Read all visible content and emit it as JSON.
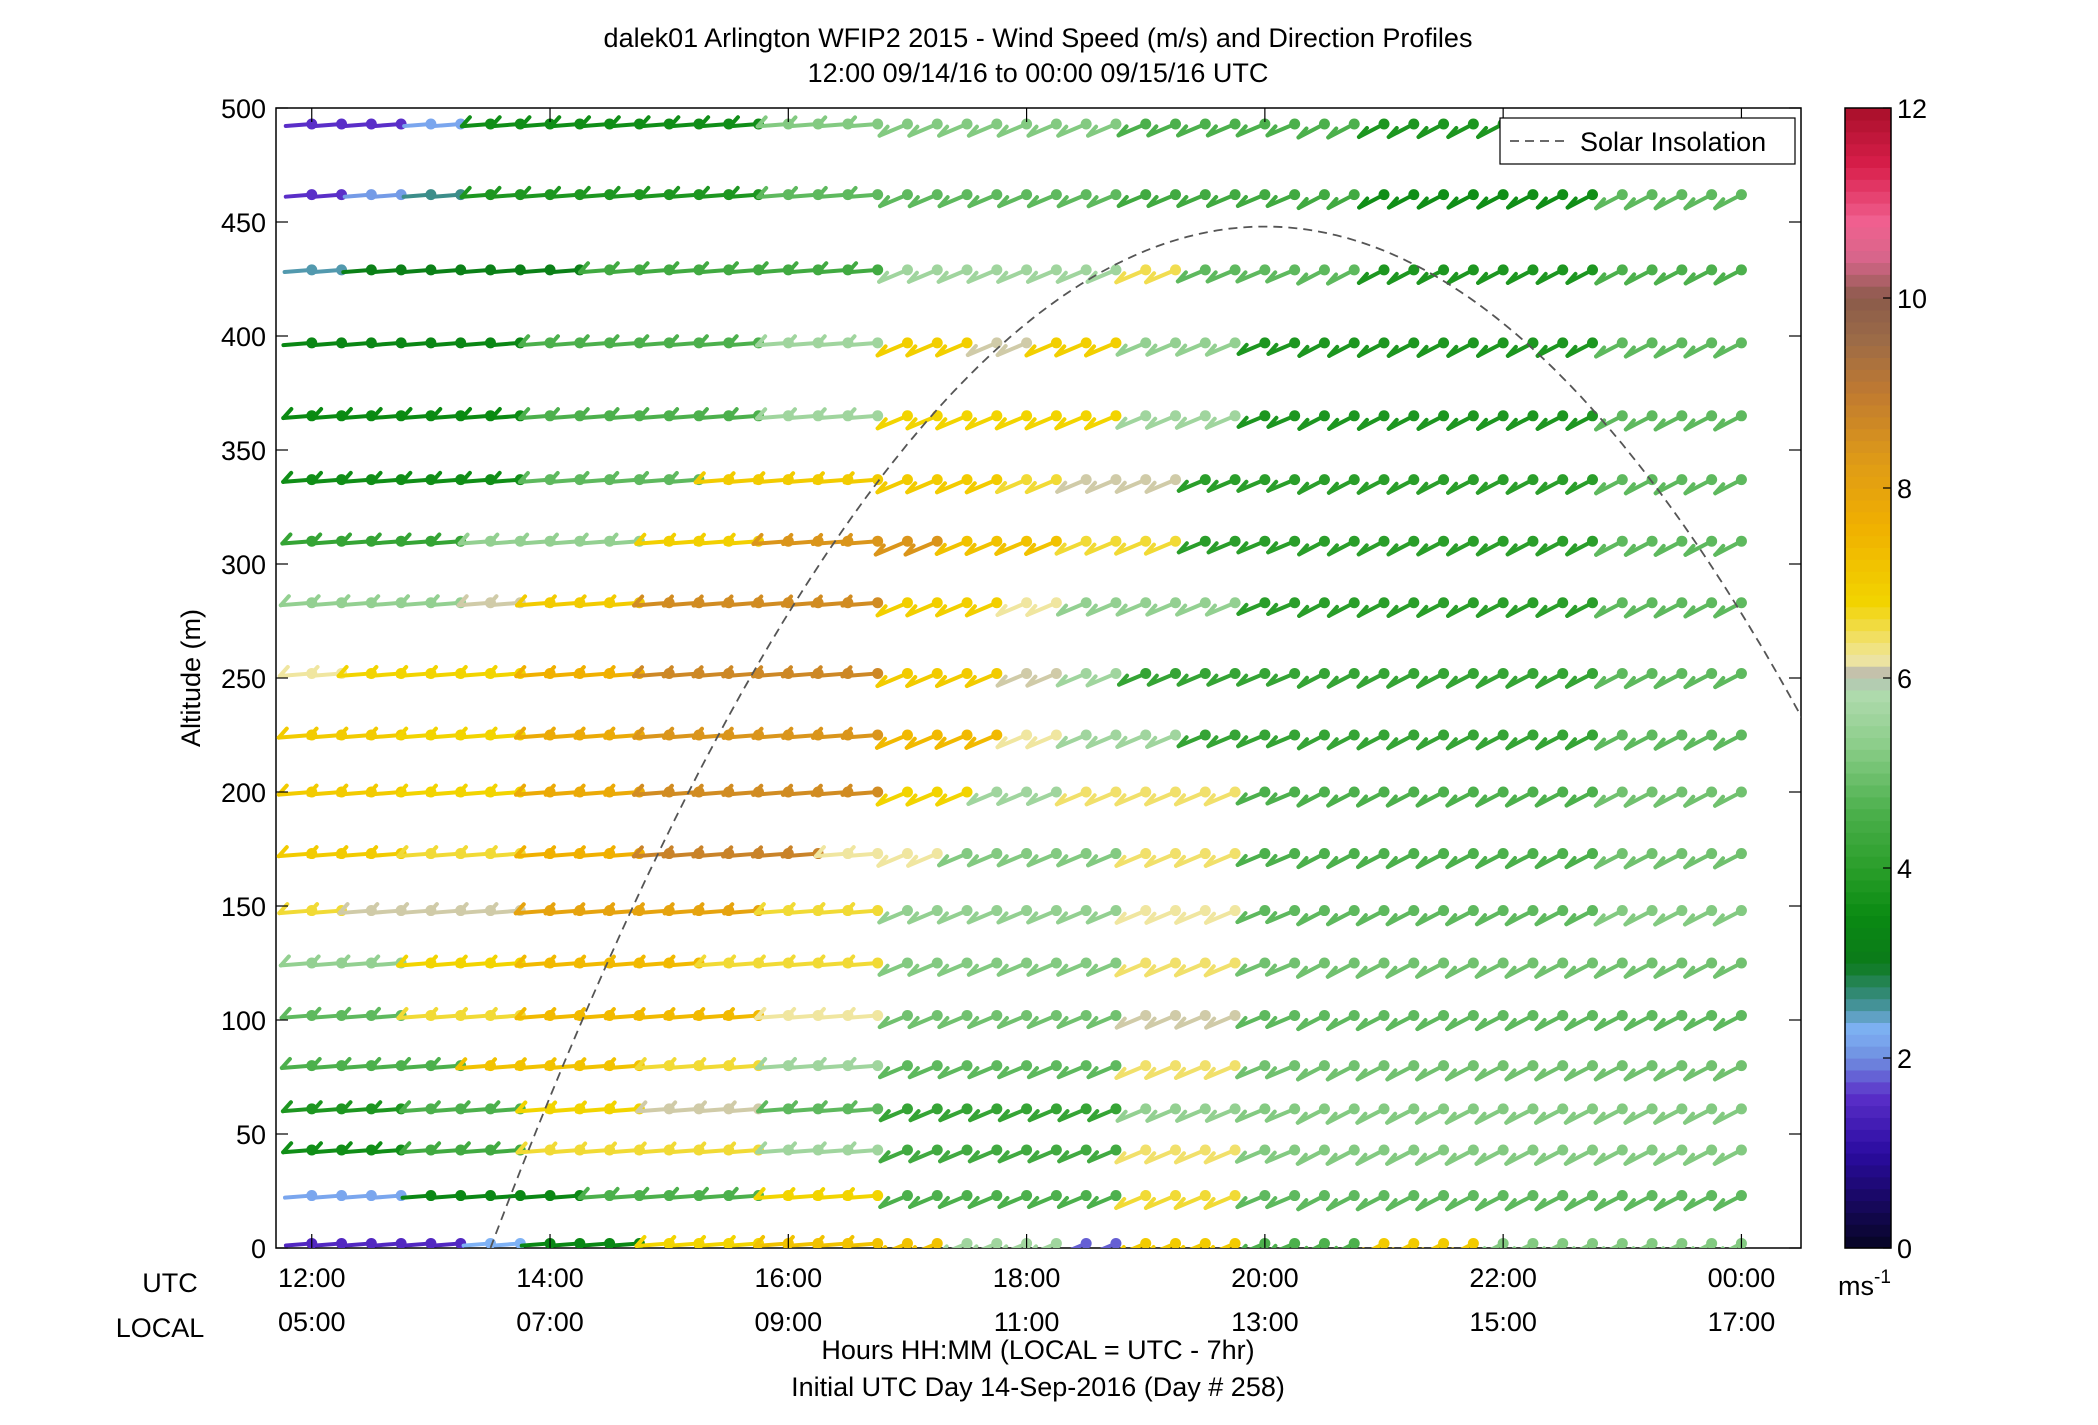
{
  "chart_data": {
    "type": "wind-barb-profile",
    "title": "dalek01 Arlington WFIP2 2015 - Wind Speed (m/s) and Direction Profiles",
    "subtitle": "12:00 09/14/16 to 00:00 09/15/16  UTC",
    "ylabel": "Altitude (m)",
    "xlabel": "Hours HH:MM  (LOCAL = UTC - 7hr)",
    "xlabel2": "Initial UTC Day 14-Sep-2016 (Day # 258)",
    "utc_label": "UTC",
    "local_label": "LOCAL",
    "x_ticks_utc": [
      "12:00",
      "14:00",
      "16:00",
      "18:00",
      "20:00",
      "22:00",
      "00:00"
    ],
    "x_ticks_local": [
      "05:00",
      "07:00",
      "09:00",
      "11:00",
      "13:00",
      "15:00",
      "17:00"
    ],
    "x_range_hours": [
      11.7,
      24.5
    ],
    "ylim": [
      0,
      500
    ],
    "y_ticks": [
      "0",
      "50",
      "100",
      "150",
      "200",
      "250",
      "300",
      "350",
      "400",
      "450",
      "500"
    ],
    "colorbar": {
      "range": [
        0,
        12
      ],
      "ticks": [
        "0",
        "2",
        "4",
        "6",
        "8",
        "10",
        "12"
      ],
      "unit_base": "ms",
      "unit_exp": "-1"
    },
    "legend": {
      "entry": "Solar Insolation",
      "placement": "top-right"
    },
    "solar_insolation": {
      "start_hour": 13.5,
      "peak_hour": 20.0,
      "peak_altitude": 448
    },
    "altitudes": [
      2,
      23,
      43,
      61,
      80,
      102,
      125,
      148,
      173,
      200,
      225,
      252,
      283,
      310,
      337,
      365,
      397,
      429,
      462,
      493
    ],
    "times_hours_utc": [
      12.0,
      24.0
    ],
    "time_step_minutes": 15,
    "direction_profile": [
      {
        "from_hour": 12.0,
        "direction_deg": 265
      },
      {
        "from_hour": 17.0,
        "direction_deg": 245
      },
      {
        "from_hour": 20.5,
        "direction_deg": 240
      }
    ],
    "speed_segments_ms": [
      {
        "alt": 493,
        "segments": [
          [
            12,
            13,
            1.6
          ],
          [
            13,
            13.5,
            2.2
          ],
          [
            13.5,
            16,
            3.6
          ],
          [
            16,
            19,
            5.2
          ],
          [
            19,
            21,
            4.6
          ],
          [
            21,
            23,
            3.8
          ],
          [
            23,
            24,
            4.6
          ]
        ]
      },
      {
        "alt": 462,
        "segments": [
          [
            12,
            12.5,
            1.6
          ],
          [
            12.5,
            13,
            2.1
          ],
          [
            13,
            13.5,
            2.6
          ],
          [
            13.5,
            16,
            3.8
          ],
          [
            16,
            19,
            4.8
          ],
          [
            19,
            21,
            4.4
          ],
          [
            21,
            23,
            3.6
          ],
          [
            23,
            24,
            4.8
          ]
        ]
      },
      {
        "alt": 429,
        "segments": [
          [
            12,
            12.5,
            2.5
          ],
          [
            12.5,
            14.5,
            3.2
          ],
          [
            14.5,
            17,
            4.4
          ],
          [
            17,
            18.8,
            5.6
          ],
          [
            18.8,
            19.5,
            6.5
          ],
          [
            19.5,
            21,
            4.8
          ],
          [
            21,
            23,
            3.8
          ],
          [
            23,
            24,
            4.6
          ]
        ]
      },
      {
        "alt": 397,
        "segments": [
          [
            12,
            14,
            3.4
          ],
          [
            14,
            16,
            4.6
          ],
          [
            16,
            17,
            5.6
          ],
          [
            17,
            17.7,
            6.9
          ],
          [
            17.7,
            18.1,
            6.1
          ],
          [
            18.1,
            19,
            6.9
          ],
          [
            19,
            20,
            5.4
          ],
          [
            20,
            23,
            3.8
          ],
          [
            23,
            24,
            4.8
          ]
        ]
      },
      {
        "alt": 365,
        "segments": [
          [
            12,
            14,
            3.5
          ],
          [
            14,
            16,
            4.6
          ],
          [
            16,
            17,
            5.6
          ],
          [
            17,
            19,
            6.8
          ],
          [
            19,
            20,
            5.6
          ],
          [
            20,
            23,
            3.8
          ],
          [
            23,
            24,
            4.8
          ]
        ]
      },
      {
        "alt": 337,
        "segments": [
          [
            12,
            14,
            3.6
          ],
          [
            14,
            15.5,
            4.8
          ],
          [
            15.5,
            18,
            7.0
          ],
          [
            18,
            18.5,
            6.6
          ],
          [
            18.5,
            19.5,
            6.1
          ],
          [
            19.5,
            23,
            4.0
          ],
          [
            23,
            24,
            4.8
          ]
        ]
      },
      {
        "alt": 310,
        "segments": [
          [
            12,
            13.5,
            4.2
          ],
          [
            13.5,
            15,
            5.4
          ],
          [
            15,
            15.8,
            6.9
          ],
          [
            15.8,
            17.3,
            8.4
          ],
          [
            17.3,
            18.5,
            7.2
          ],
          [
            18.5,
            19.5,
            6.6
          ],
          [
            19.5,
            23,
            4.0
          ],
          [
            23,
            24,
            4.8
          ]
        ]
      },
      {
        "alt": 283,
        "segments": [
          [
            12,
            13.5,
            5.4
          ],
          [
            13.5,
            14,
            6.1
          ],
          [
            14,
            15,
            7.0
          ],
          [
            15,
            17,
            8.6
          ],
          [
            17,
            18,
            6.9
          ],
          [
            18,
            18.5,
            6.2
          ],
          [
            18.5,
            20,
            5.4
          ],
          [
            20,
            23,
            4.0
          ],
          [
            23,
            24,
            4.8
          ]
        ]
      },
      {
        "alt": 252,
        "segments": [
          [
            12,
            12.3,
            6.2
          ],
          [
            12.3,
            14,
            6.8
          ],
          [
            14,
            15,
            7.6
          ],
          [
            15,
            16.8,
            8.7
          ],
          [
            16.8,
            18,
            7.0
          ],
          [
            18,
            18.3,
            6.1
          ],
          [
            18.3,
            19,
            5.6
          ],
          [
            19,
            23,
            4.2
          ],
          [
            23,
            24,
            4.8
          ]
        ]
      },
      {
        "alt": 225,
        "segments": [
          [
            12,
            13,
            7.0
          ],
          [
            13,
            14,
            6.8
          ],
          [
            14,
            15,
            7.8
          ],
          [
            15,
            17,
            8.4
          ],
          [
            17,
            18,
            7.4
          ],
          [
            18,
            18.4,
            6.2
          ],
          [
            18.4,
            19.5,
            5.6
          ],
          [
            19.5,
            23,
            4.2
          ],
          [
            23,
            24,
            4.8
          ]
        ]
      },
      {
        "alt": 200,
        "segments": [
          [
            12,
            13,
            7.0
          ],
          [
            13,
            14,
            6.8
          ],
          [
            14,
            15,
            7.8
          ],
          [
            15,
            17,
            8.6
          ],
          [
            17,
            17.6,
            6.8
          ],
          [
            17.6,
            18.5,
            5.6
          ],
          [
            18.5,
            20,
            6.4
          ],
          [
            20,
            23,
            4.6
          ],
          [
            23,
            24,
            5.0
          ]
        ]
      },
      {
        "alt": 173,
        "segments": [
          [
            12,
            13,
            7.0
          ],
          [
            13,
            14,
            6.6
          ],
          [
            14,
            15,
            7.6
          ],
          [
            15,
            16.5,
            8.8
          ],
          [
            16.5,
            17.3,
            6.2
          ],
          [
            17.3,
            19,
            5.2
          ],
          [
            19,
            20,
            6.4
          ],
          [
            20,
            23,
            4.6
          ],
          [
            23,
            24,
            5.0
          ]
        ]
      },
      {
        "alt": 148,
        "segments": [
          [
            12,
            12.5,
            6.6
          ],
          [
            12.5,
            14,
            6.1
          ],
          [
            14,
            16,
            8.0
          ],
          [
            16,
            17,
            6.6
          ],
          [
            17,
            19,
            5.4
          ],
          [
            19,
            20,
            6.2
          ],
          [
            20,
            23,
            4.8
          ],
          [
            23,
            24,
            5.2
          ]
        ]
      },
      {
        "alt": 125,
        "segments": [
          [
            12,
            13,
            5.4
          ],
          [
            13,
            14,
            6.8
          ],
          [
            14,
            15.5,
            7.4
          ],
          [
            15.5,
            17,
            6.6
          ],
          [
            17,
            19,
            5.2
          ],
          [
            19,
            20,
            6.4
          ],
          [
            20,
            24,
            5.0
          ]
        ]
      },
      {
        "alt": 102,
        "segments": [
          [
            12,
            13,
            4.8
          ],
          [
            13,
            14,
            6.6
          ],
          [
            14,
            16,
            7.4
          ],
          [
            16,
            17,
            6.2
          ],
          [
            17,
            19,
            5.0
          ],
          [
            19,
            20,
            6.1
          ],
          [
            20,
            24,
            4.8
          ]
        ]
      },
      {
        "alt": 80,
        "segments": [
          [
            12,
            13.5,
            4.6
          ],
          [
            13.5,
            15,
            7.2
          ],
          [
            15,
            16,
            6.6
          ],
          [
            16,
            17,
            5.6
          ],
          [
            17,
            19,
            4.8
          ],
          [
            19,
            20,
            6.4
          ],
          [
            20,
            24,
            5.0
          ]
        ]
      },
      {
        "alt": 61,
        "segments": [
          [
            12,
            13,
            3.8
          ],
          [
            13,
            14,
            4.6
          ],
          [
            14,
            15,
            6.8
          ],
          [
            15,
            16,
            6.1
          ],
          [
            16,
            17,
            4.8
          ],
          [
            17,
            19,
            4.2
          ],
          [
            19,
            20,
            5.4
          ],
          [
            20,
            24,
            5.2
          ]
        ]
      },
      {
        "alt": 43,
        "segments": [
          [
            12,
            13,
            3.6
          ],
          [
            13,
            14,
            4.4
          ],
          [
            14,
            16,
            6.6
          ],
          [
            16,
            17,
            5.6
          ],
          [
            17,
            19,
            4.4
          ],
          [
            19,
            20,
            6.4
          ],
          [
            20,
            24,
            5.2
          ]
        ]
      },
      {
        "alt": 23,
        "segments": [
          [
            12,
            13,
            2.2
          ],
          [
            13,
            14.5,
            3.4
          ],
          [
            14.5,
            16,
            4.6
          ],
          [
            16,
            17,
            6.8
          ],
          [
            17,
            19,
            4.6
          ],
          [
            19,
            20,
            6.6
          ],
          [
            20,
            24,
            4.8
          ]
        ]
      },
      {
        "alt": 2,
        "segments": [
          [
            12,
            13.5,
            1.5
          ],
          [
            13.5,
            14,
            2.3
          ],
          [
            14,
            15,
            3.4
          ],
          [
            15,
            16,
            6.8
          ],
          [
            16,
            17.5,
            7.2
          ],
          [
            17.5,
            18.5,
            5.6
          ],
          [
            18.5,
            19,
            1.8
          ],
          [
            19,
            20,
            7.0
          ],
          [
            20,
            21,
            4.6
          ],
          [
            21,
            22,
            7.0
          ],
          [
            22,
            24,
            5.2
          ]
        ]
      }
    ]
  }
}
